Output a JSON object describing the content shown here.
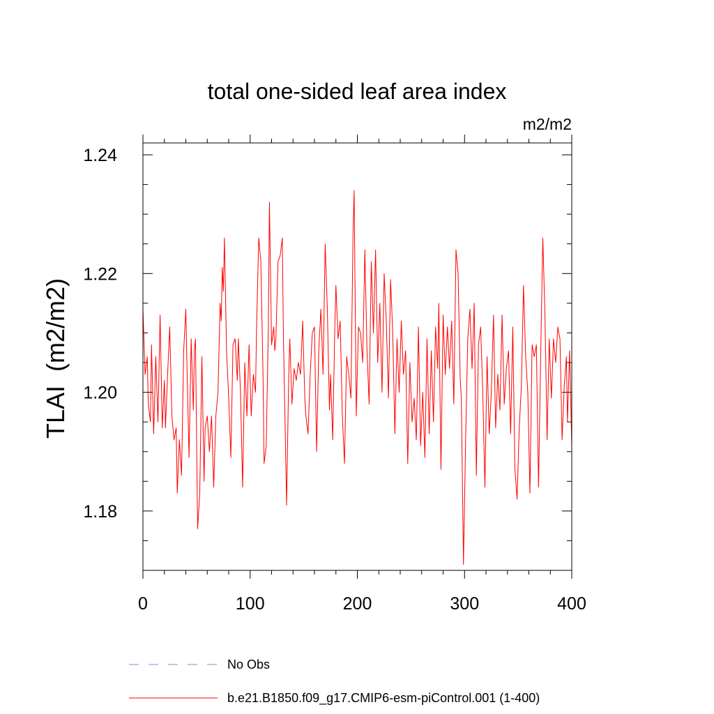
{
  "chart_data": {
    "type": "line",
    "title": "total one-sided leaf area index",
    "units_label": "m2/m2",
    "ylabel": "TLAI  (m2/m2)",
    "xlabel": "",
    "xlim": [
      0,
      400
    ],
    "ylim": [
      1.17,
      1.242
    ],
    "x_ticks": [
      0,
      100,
      200,
      300,
      400
    ],
    "x_tick_labels": [
      "0",
      "100",
      "200",
      "300",
      "400"
    ],
    "y_ticks": [
      1.18,
      1.2,
      1.22,
      1.24
    ],
    "y_tick_labels": [
      "1.18",
      "1.20",
      "1.22",
      "1.24"
    ],
    "grid": false,
    "legend_position": "bottom",
    "legend": [
      {
        "label": "No Obs",
        "color": "#8888cc",
        "dash": "dashed"
      },
      {
        "label": "b.e21.B1850.f09_g17.CMIP6-esm-piControl.001 (1-400)",
        "color": "#ff0000",
        "dash": "solid"
      }
    ],
    "series": [
      {
        "name": "b.e21.B1850.f09_g17.CMIP6-esm-piControl.001 (1-400)",
        "color": "#ff0000",
        "points": [
          [
            0,
            1.214
          ],
          [
            2,
            1.203
          ],
          [
            4,
            1.206
          ],
          [
            5,
            1.198
          ],
          [
            7,
            1.195
          ],
          [
            8,
            1.208
          ],
          [
            10,
            1.193
          ],
          [
            12,
            1.206
          ],
          [
            14,
            1.195
          ],
          [
            16,
            1.213
          ],
          [
            18,
            1.194
          ],
          [
            20,
            1.202
          ],
          [
            21,
            1.194
          ],
          [
            23,
            1.203
          ],
          [
            25,
            1.211
          ],
          [
            27,
            1.196
          ],
          [
            29,
            1.192
          ],
          [
            31,
            1.194
          ],
          [
            32,
            1.183
          ],
          [
            34,
            1.192
          ],
          [
            36,
            1.186
          ],
          [
            38,
            1.207
          ],
          [
            40,
            1.214
          ],
          [
            41,
            1.205
          ],
          [
            43,
            1.189
          ],
          [
            45,
            1.209
          ],
          [
            47,
            1.197
          ],
          [
            48,
            1.207
          ],
          [
            49,
            1.209
          ],
          [
            51,
            1.177
          ],
          [
            53,
            1.183
          ],
          [
            55,
            1.206
          ],
          [
            57,
            1.185
          ],
          [
            58,
            1.194
          ],
          [
            60,
            1.196
          ],
          [
            62,
            1.19
          ],
          [
            64,
            1.196
          ],
          [
            66,
            1.184
          ],
          [
            68,
            1.196
          ],
          [
            70,
            1.2
          ],
          [
            72,
            1.215
          ],
          [
            73,
            1.212
          ],
          [
            74,
            1.221
          ],
          [
            75,
            1.217
          ],
          [
            76,
            1.226
          ],
          [
            78,
            1.207
          ],
          [
            80,
            1.199
          ],
          [
            82,
            1.189
          ],
          [
            84,
            1.208
          ],
          [
            86,
            1.209
          ],
          [
            88,
            1.202
          ],
          [
            89,
            1.209
          ],
          [
            91,
            1.2
          ],
          [
            93,
            1.184
          ],
          [
            95,
            1.205
          ],
          [
            97,
            1.196
          ],
          [
            99,
            1.208
          ],
          [
            101,
            1.196
          ],
          [
            103,
            1.203
          ],
          [
            105,
            1.2
          ],
          [
            106,
            1.211
          ],
          [
            108,
            1.226
          ],
          [
            110,
            1.222
          ],
          [
            112,
            1.203
          ],
          [
            113,
            1.188
          ],
          [
            115,
            1.191
          ],
          [
            117,
            1.211
          ],
          [
            118,
            1.232
          ],
          [
            120,
            1.208
          ],
          [
            122,
            1.211
          ],
          [
            123,
            1.207
          ],
          [
            124,
            1.209
          ],
          [
            126,
            1.222
          ],
          [
            128,
            1.223
          ],
          [
            130,
            1.226
          ],
          [
            131,
            1.21
          ],
          [
            132,
            1.2
          ],
          [
            134,
            1.181
          ],
          [
            136,
            1.203
          ],
          [
            137,
            1.209
          ],
          [
            139,
            1.198
          ],
          [
            141,
            1.204
          ],
          [
            143,
            1.202
          ],
          [
            145,
            1.205
          ],
          [
            147,
            1.203
          ],
          [
            149,
            1.212
          ],
          [
            151,
            1.199
          ],
          [
            152,
            1.196
          ],
          [
            154,
            1.193
          ],
          [
            156,
            1.203
          ],
          [
            158,
            1.21
          ],
          [
            160,
            1.211
          ],
          [
            162,
            1.19
          ],
          [
            164,
            1.207
          ],
          [
            166,
            1.214
          ],
          [
            168,
            1.203
          ],
          [
            170,
            1.225
          ],
          [
            172,
            1.214
          ],
          [
            174,
            1.197
          ],
          [
            175,
            1.203
          ],
          [
            177,
            1.192
          ],
          [
            179,
            1.211
          ],
          [
            180,
            1.218
          ],
          [
            182,
            1.209
          ],
          [
            184,
            1.212
          ],
          [
            186,
            1.196
          ],
          [
            188,
            1.188
          ],
          [
            190,
            1.206
          ],
          [
            192,
            1.203
          ],
          [
            194,
            1.199
          ],
          [
            196,
            1.227
          ],
          [
            197,
            1.234
          ],
          [
            199,
            1.196
          ],
          [
            201,
            1.211
          ],
          [
            203,
            1.21
          ],
          [
            205,
            1.205
          ],
          [
            207,
            1.224
          ],
          [
            209,
            1.207
          ],
          [
            211,
            1.198
          ],
          [
            213,
            1.222
          ],
          [
            215,
            1.21
          ],
          [
            217,
            1.224
          ],
          [
            219,
            1.205
          ],
          [
            221,
            1.215
          ],
          [
            223,
            1.2
          ],
          [
            225,
            1.22
          ],
          [
            227,
            1.212
          ],
          [
            229,
            1.199
          ],
          [
            231,
            1.219
          ],
          [
            233,
            1.21
          ],
          [
            235,
            1.193
          ],
          [
            237,
            1.209
          ],
          [
            239,
            1.2
          ],
          [
            241,
            1.212
          ],
          [
            243,
            1.203
          ],
          [
            245,
            1.207
          ],
          [
            247,
            1.188
          ],
          [
            249,
            1.205
          ],
          [
            251,
            1.195
          ],
          [
            253,
            1.199
          ],
          [
            255,
            1.192
          ],
          [
            257,
            1.211
          ],
          [
            259,
            1.191
          ],
          [
            261,
            1.2
          ],
          [
            263,
            1.189
          ],
          [
            265,
            1.209
          ],
          [
            267,
            1.193
          ],
          [
            269,
            1.207
          ],
          [
            271,
            1.195
          ],
          [
            273,
            1.211
          ],
          [
            275,
            1.204
          ],
          [
            276,
            1.215
          ],
          [
            278,
            1.187
          ],
          [
            280,
            1.213
          ],
          [
            282,
            1.203
          ],
          [
            284,
            1.211
          ],
          [
            286,
            1.204
          ],
          [
            288,
            1.212
          ],
          [
            290,
            1.198
          ],
          [
            292,
            1.224
          ],
          [
            294,
            1.22
          ],
          [
            296,
            1.202
          ],
          [
            297,
            1.199
          ],
          [
            299,
            1.171
          ],
          [
            301,
            1.192
          ],
          [
            303,
            1.209
          ],
          [
            305,
            1.214
          ],
          [
            307,
            1.204
          ],
          [
            309,
            1.215
          ],
          [
            311,
            1.186
          ],
          [
            313,
            1.208
          ],
          [
            315,
            1.211
          ],
          [
            317,
            1.2
          ],
          [
            319,
            1.184
          ],
          [
            321,
            1.206
          ],
          [
            323,
            1.193
          ],
          [
            325,
            1.2
          ],
          [
            327,
            1.213
          ],
          [
            329,
            1.194
          ],
          [
            331,
            1.203
          ],
          [
            333,
            1.197
          ],
          [
            335,
            1.213
          ],
          [
            337,
            1.198
          ],
          [
            339,
            1.204
          ],
          [
            341,
            1.207
          ],
          [
            343,
            1.193
          ],
          [
            345,
            1.211
          ],
          [
            347,
            1.187
          ],
          [
            349,
            1.182
          ],
          [
            351,
            1.194
          ],
          [
            353,
            1.201
          ],
          [
            355,
            1.218
          ],
          [
            357,
            1.206
          ],
          [
            359,
            1.2
          ],
          [
            361,
            1.183
          ],
          [
            363,
            1.208
          ],
          [
            365,
            1.206
          ],
          [
            367,
            1.208
          ],
          [
            369,
            1.184
          ],
          [
            371,
            1.206
          ],
          [
            373,
            1.226
          ],
          [
            375,
            1.213
          ],
          [
            377,
            1.192
          ],
          [
            379,
            1.209
          ],
          [
            381,
            1.199
          ],
          [
            383,
            1.209
          ],
          [
            385,
            1.205
          ],
          [
            387,
            1.211
          ],
          [
            389,
            1.209
          ],
          [
            391,
            1.192
          ],
          [
            393,
            1.201
          ],
          [
            395,
            1.206
          ],
          [
            396,
            1.195
          ],
          [
            398,
            1.207
          ],
          [
            400,
            1.191
          ]
        ]
      }
    ]
  }
}
